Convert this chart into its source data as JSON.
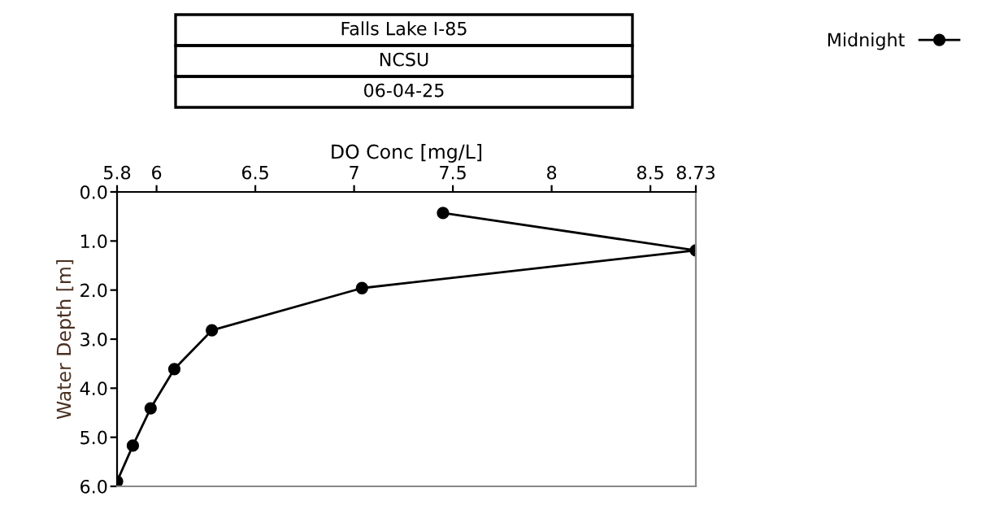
{
  "chart_data": {
    "type": "line",
    "title": "Falls Lake I-85",
    "subtitle": "NCSU",
    "annotations": [
      "06-04-25"
    ],
    "xlabel": "DO Conc [mg/L]",
    "ylabel": "Water Depth [m]",
    "xlim": [
      5.8,
      8.73
    ],
    "xticks": [
      {
        "value": 5.8,
        "label": "5.8"
      },
      6,
      6.5,
      7,
      7.5,
      8,
      8.5,
      8.73
    ],
    "ylim": [
      6,
      0
    ],
    "yticks": [
      {
        "value": 0,
        "label": "0.0"
      },
      {
        "value": 1,
        "label": "1.0"
      },
      {
        "value": 2,
        "label": "2.0"
      },
      {
        "value": 3,
        "label": "3.0"
      },
      {
        "value": 4,
        "label": "4.0"
      },
      {
        "value": 5,
        "label": "5.0"
      },
      {
        "value": 6,
        "label": "6.0"
      }
    ],
    "grid": false,
    "legend": "top right",
    "marker": "circle",
    "line_style": "solid",
    "series": [
      {
        "name": "Midnight",
        "color": "#000000",
        "x": [
          7.45,
          8.73,
          7.04,
          6.28,
          6.09,
          5.97,
          5.88,
          5.8
        ],
        "values": [
          0.43,
          1.19,
          1.96,
          2.82,
          3.61,
          4.41,
          5.17,
          5.9
        ]
      }
    ]
  }
}
